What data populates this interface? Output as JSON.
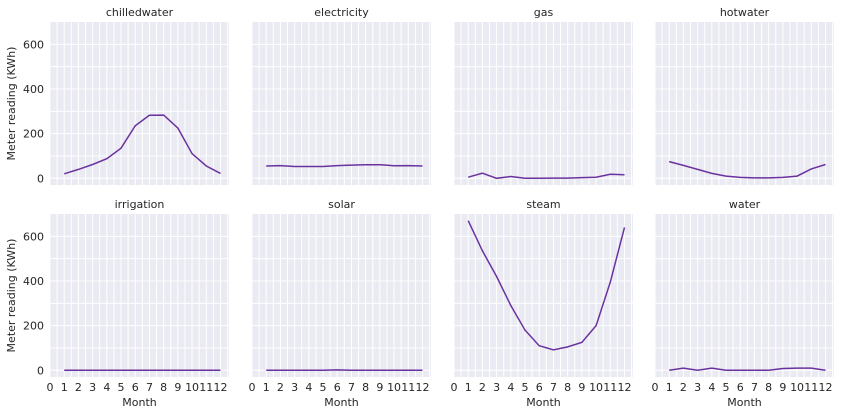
{
  "chart_data": {
    "type": "line",
    "ylabel": "Meter reading (KWh)",
    "xlabel": "Month",
    "xlim": [
      0,
      12.6
    ],
    "ylim": [
      -30,
      700
    ],
    "x_ticks": [
      0,
      1,
      2,
      3,
      4,
      5,
      6,
      7,
      8,
      9,
      10,
      11,
      12
    ],
    "y_ticks": [
      0,
      200,
      400,
      600
    ],
    "grid": true,
    "line_color": "#6a329f",
    "x": [
      1,
      2,
      3,
      4,
      5,
      6,
      7,
      8,
      9,
      10,
      11,
      12
    ],
    "panels": [
      {
        "title": "chilledwater",
        "values": [
          20,
          40,
          62,
          88,
          135,
          235,
          282,
          283,
          225,
          110,
          55,
          22
        ]
      },
      {
        "title": "electricity",
        "values": [
          55,
          57,
          53,
          53,
          53,
          57,
          59,
          61,
          61,
          56,
          57,
          55
        ]
      },
      {
        "title": "gas",
        "values": [
          5,
          23,
          0,
          8,
          0,
          0,
          1,
          1,
          3,
          5,
          18,
          16
        ]
      },
      {
        "title": "hotwater",
        "values": [
          75,
          58,
          40,
          22,
          10,
          4,
          2,
          2,
          4,
          10,
          42,
          62
        ]
      },
      {
        "title": "irrigation",
        "values": [
          0,
          0,
          0,
          0,
          0,
          0,
          0,
          0,
          0,
          0,
          0,
          0
        ]
      },
      {
        "title": "solar",
        "values": [
          0,
          0,
          0,
          0,
          0,
          2,
          0,
          0,
          0,
          0,
          0,
          0
        ]
      },
      {
        "title": "steam",
        "values": [
          670,
          535,
          420,
          290,
          180,
          110,
          92,
          105,
          125,
          200,
          395,
          640
        ]
      },
      {
        "title": "water",
        "values": [
          0,
          10,
          0,
          10,
          0,
          0,
          0,
          0,
          8,
          10,
          10,
          0
        ]
      }
    ]
  }
}
